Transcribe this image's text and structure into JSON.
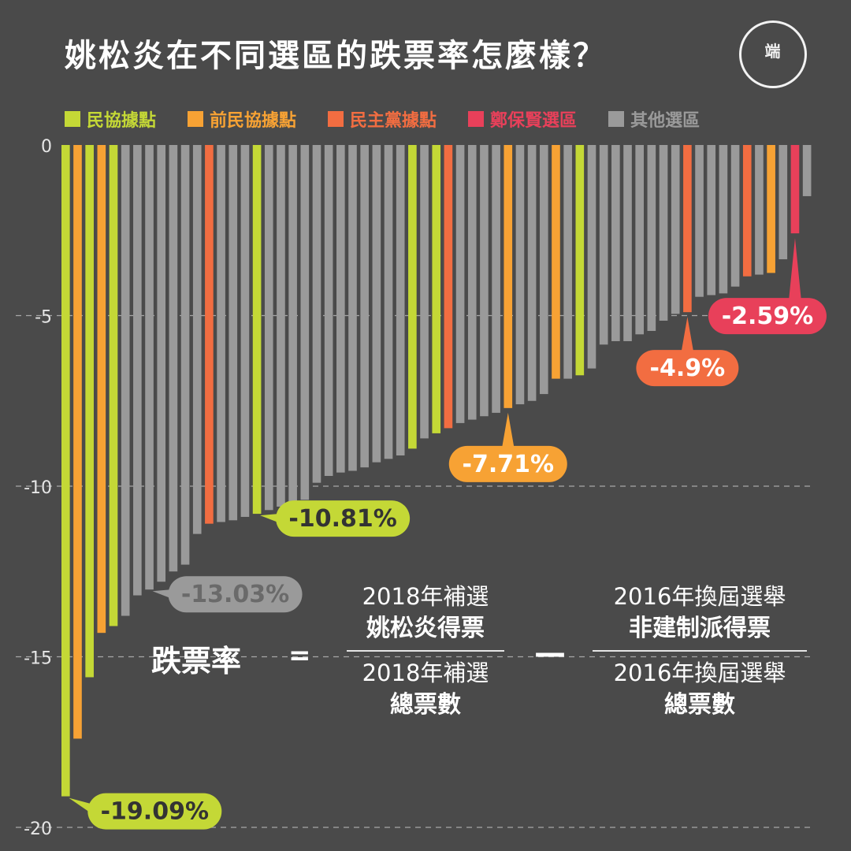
{
  "title": "姚松炎在不同選區的跌票率怎麼樣？",
  "logo_text": "端",
  "legend": [
    {
      "label": "民協據點",
      "color": "#c4d836"
    },
    {
      "label": "前民協據點",
      "color": "#f7a234"
    },
    {
      "label": "民主黨據點",
      "color": "#f26d41"
    },
    {
      "label": "鄭保賢選區",
      "color": "#e8405a"
    },
    {
      "label": "其他選區",
      "color": "#9a9a9a"
    }
  ],
  "formula": {
    "label": "跌票率",
    "equals": "=",
    "minus": "—",
    "term1_num_line1": "2018年補選",
    "term1_num_line2": "姚松炎得票",
    "term1_den_line1": "2018年補選",
    "term1_den_line2": "總票數",
    "term2_num_line1": "2016年換屆選舉",
    "term2_num_line2": "非建制派得票",
    "term2_den_line1": "2016年換屆選舉",
    "term2_den_line2": "總票數"
  },
  "chart_data": {
    "type": "bar",
    "ylim": [
      -20,
      0
    ],
    "yticks": [
      0,
      -5,
      -10,
      -15,
      -20
    ],
    "ytick_labels": [
      "0",
      "-5",
      "-10",
      "-15",
      "-20"
    ],
    "grid": "dashed horizontal",
    "legend_position": "top",
    "categories_hidden": true,
    "values": [
      -19.09,
      -17.4,
      -15.6,
      -14.3,
      -14.1,
      -13.8,
      -13.2,
      -13.03,
      -12.8,
      -12.5,
      -12.3,
      -11.4,
      -11.1,
      -11.05,
      -11.0,
      -10.9,
      -10.81,
      -10.7,
      -10.6,
      -10.5,
      -10.4,
      -9.9,
      -9.7,
      -9.6,
      -9.55,
      -9.45,
      -9.3,
      -9.2,
      -9.1,
      -8.9,
      -8.6,
      -8.45,
      -8.3,
      -8.15,
      -8.05,
      -7.95,
      -7.85,
      -7.71,
      -7.6,
      -7.5,
      -7.3,
      -6.85,
      -6.85,
      -6.75,
      -6.55,
      -5.85,
      -5.75,
      -5.75,
      -5.55,
      -5.45,
      -5.15,
      -4.95,
      -4.9,
      -4.45,
      -4.4,
      -4.35,
      -4.15,
      -3.85,
      -3.8,
      -3.75,
      -3.35,
      -2.59,
      -1.5
    ],
    "groups": [
      "民協",
      "前民協",
      "民協",
      "前民協",
      "民協",
      "其他",
      "其他",
      "其他",
      "其他",
      "其他",
      "其他",
      "其他",
      "民主黨",
      "其他",
      "其他",
      "其他",
      "民協",
      "其他",
      "其他",
      "其他",
      "其他",
      "其他",
      "其他",
      "其他",
      "其他",
      "其他",
      "其他",
      "其他",
      "其他",
      "民協",
      "其他",
      "民協",
      "民主黨",
      "其他",
      "其他",
      "其他",
      "其他",
      "前民協",
      "其他",
      "其他",
      "其他",
      "前民協",
      "其他",
      "民協",
      "其他",
      "其他",
      "其他",
      "其他",
      "其他",
      "其他",
      "其他",
      "其他",
      "民主黨",
      "其他",
      "其他",
      "其他",
      "其他",
      "民主黨",
      "其他",
      "前民協",
      "其他",
      "鄭保賢",
      "其他"
    ],
    "group_colors": {
      "民協": "#c4d836",
      "前民協": "#f7a234",
      "民主黨": "#f26d41",
      "鄭保賢": "#e8405a",
      "其他": "#9a9a9a"
    },
    "annotations": [
      {
        "index": 0,
        "text": "-19.09%",
        "group": "民協"
      },
      {
        "index": 7,
        "text": "-13.03%",
        "group": "其他"
      },
      {
        "index": 16,
        "text": "-10.81%",
        "group": "民協"
      },
      {
        "index": 37,
        "text": "-7.71%",
        "group": "前民協"
      },
      {
        "index": 52,
        "text": "-4.9%",
        "group": "民主黨"
      },
      {
        "index": 61,
        "text": "-2.59%",
        "group": "鄭保賢"
      }
    ]
  }
}
